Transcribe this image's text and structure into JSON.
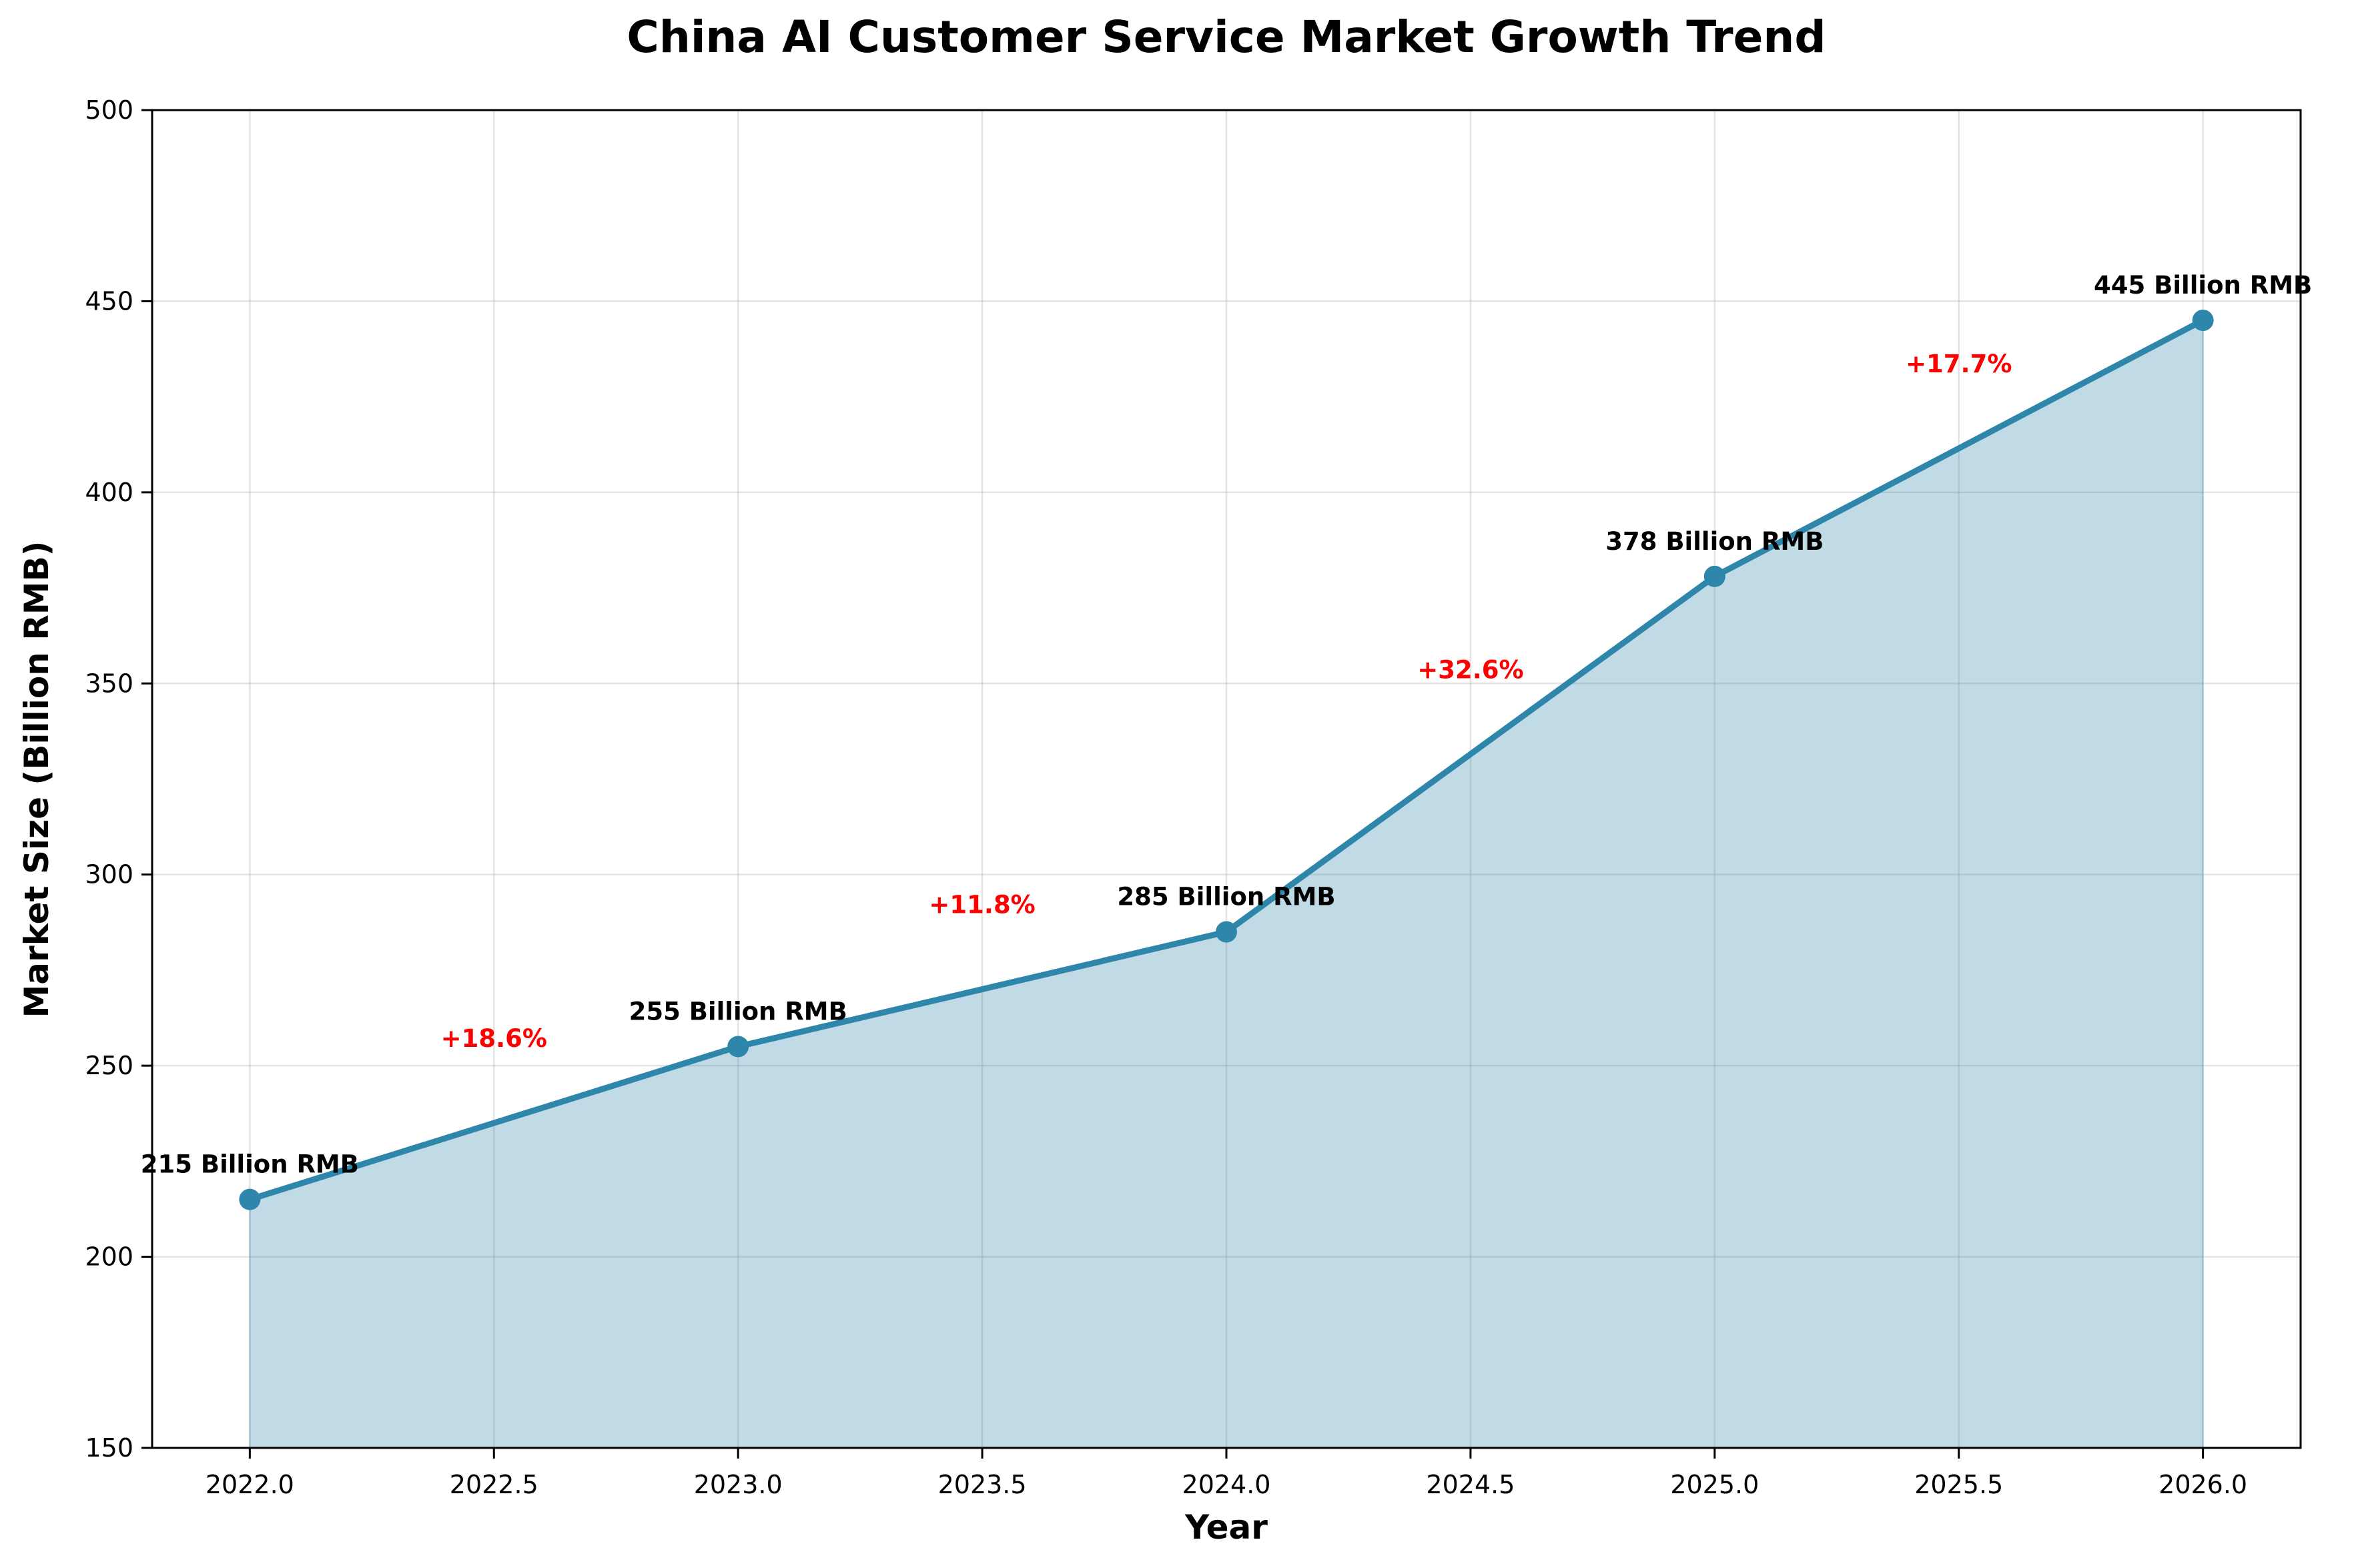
{
  "chart_data": {
    "type": "line",
    "title": "China AI Customer Service Market Growth Trend",
    "xlabel": "Year",
    "ylabel": "Market Size (Billion RMB)",
    "xlim": [
      2021.8,
      2026.2
    ],
    "ylim": [
      150,
      500
    ],
    "xticks": [
      2022.0,
      2022.5,
      2023.0,
      2023.5,
      2024.0,
      2024.5,
      2025.0,
      2025.5,
      2026.0
    ],
    "xtick_labels": [
      "2022.0",
      "2022.5",
      "2023.0",
      "2023.5",
      "2024.0",
      "2024.5",
      "2025.0",
      "2025.5",
      "2026.0"
    ],
    "yticks": [
      150,
      200,
      250,
      300,
      350,
      400,
      450,
      500
    ],
    "ytick_labels": [
      "150",
      "200",
      "250",
      "300",
      "350",
      "400",
      "450",
      "500"
    ],
    "grid": true,
    "fill_under_line": true,
    "series": [
      {
        "name": "Market Size",
        "x": [
          2022,
          2023,
          2024,
          2025,
          2026
        ],
        "values": [
          215,
          255,
          285,
          378,
          445
        ],
        "color": "#2e86ab"
      }
    ],
    "value_labels": [
      "215 Billion RMB",
      "255 Billion RMB",
      "285 Billion RMB",
      "378 Billion RMB",
      "445 Billion RMB"
    ],
    "growth_labels": [
      "+18.6%",
      "+11.8%",
      "+32.6%",
      "+17.7%"
    ],
    "growth_label_color": "#ff0000"
  }
}
